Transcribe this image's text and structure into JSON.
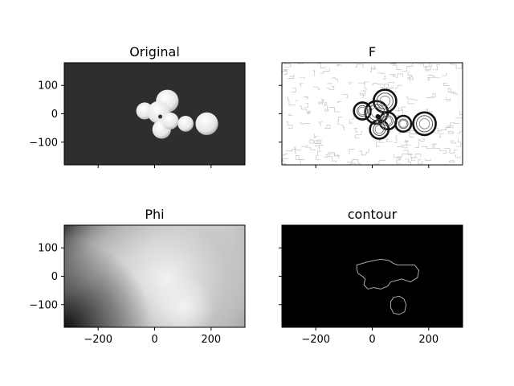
{
  "figure": {
    "background": "#ffffff",
    "grid": false
  },
  "chart_data": [
    {
      "type": "heatmap",
      "panel": "top-left",
      "title": "Original",
      "xlim": [
        -320,
        320
      ],
      "ylim": [
        -180,
        180
      ],
      "xticks": [
        -200,
        0,
        200
      ],
      "yticks": [
        100,
        0,
        -100
      ],
      "show_xtick_labels": false,
      "show_ytick_labels": true,
      "background_color": "#2e2e2e",
      "blob_color": "#e6e6e6",
      "blobs": [
        {
          "x": 45,
          "y": 45,
          "r": 40
        },
        {
          "x": -35,
          "y": 10,
          "r": 30
        },
        {
          "x": 15,
          "y": 5,
          "r": 40
        },
        {
          "x": 25,
          "y": -55,
          "r": 33
        },
        {
          "x": 55,
          "y": -25,
          "r": 30
        },
        {
          "x": 110,
          "y": -35,
          "r": 28
        },
        {
          "x": 185,
          "y": -35,
          "r": 40
        }
      ]
    },
    {
      "type": "heatmap",
      "panel": "top-right",
      "title": "F",
      "xlim": [
        -320,
        320
      ],
      "ylim": [
        -180,
        180
      ],
      "xticks": [
        -200,
        0,
        200
      ],
      "yticks": [
        100,
        0,
        -100
      ],
      "show_xtick_labels": false,
      "show_ytick_labels": false,
      "background_color": "#ffffff",
      "edge_color": "#111111"
    },
    {
      "type": "heatmap",
      "panel": "bottom-left",
      "title": "Phi",
      "xlim": [
        -320,
        320
      ],
      "ylim": [
        -180,
        180
      ],
      "xticks": [
        -200,
        0,
        200
      ],
      "yticks": [
        100,
        0,
        -100
      ],
      "show_xtick_labels": true,
      "show_ytick_labels": true,
      "colormap": "gray",
      "min_color": "#111111",
      "max_color": "#f2f2f2"
    },
    {
      "type": "heatmap",
      "panel": "bottom-right",
      "title": "contour",
      "xlim": [
        -320,
        320
      ],
      "ylim": [
        -180,
        180
      ],
      "xticks": [
        -200,
        0,
        200
      ],
      "yticks": [
        100,
        0,
        -100
      ],
      "show_xtick_labels": true,
      "show_ytick_labels": false,
      "background_color": "#000000",
      "contour_color": "#bdbdbd",
      "contours": [
        [
          [
            -55,
            40
          ],
          [
            -35,
            45
          ],
          [
            -20,
            50
          ],
          [
            5,
            55
          ],
          [
            30,
            60
          ],
          [
            60,
            55
          ],
          [
            75,
            45
          ],
          [
            90,
            40
          ],
          [
            115,
            40
          ],
          [
            150,
            40
          ],
          [
            165,
            20
          ],
          [
            160,
            -5
          ],
          [
            135,
            -20
          ],
          [
            105,
            -10
          ],
          [
            85,
            -15
          ],
          [
            65,
            -20
          ],
          [
            55,
            -35
          ],
          [
            30,
            -45
          ],
          [
            5,
            -40
          ],
          [
            -15,
            -45
          ],
          [
            -30,
            -30
          ],
          [
            -25,
            -10
          ],
          [
            -35,
            0
          ],
          [
            -50,
            10
          ],
          [
            -55,
            25
          ],
          [
            -55,
            40
          ]
        ],
        [
          [
            75,
            -75
          ],
          [
            95,
            -70
          ],
          [
            112,
            -80
          ],
          [
            120,
            -100
          ],
          [
            115,
            -125
          ],
          [
            95,
            -135
          ],
          [
            75,
            -130
          ],
          [
            65,
            -110
          ],
          [
            65,
            -90
          ],
          [
            75,
            -75
          ]
        ]
      ]
    }
  ]
}
